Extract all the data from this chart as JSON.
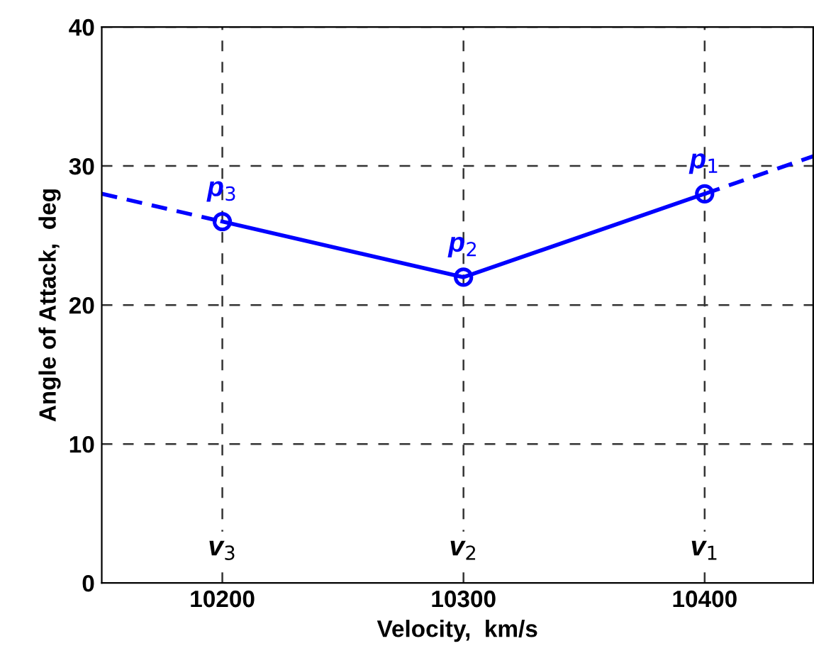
{
  "chart_data": {
    "type": "line",
    "xlabel": "Velocity,  km/s",
    "ylabel": "Angle of Attack,  deg",
    "xlim": [
      10150,
      10445
    ],
    "xticks": [
      10200,
      10300,
      10400
    ],
    "ylim": [
      0,
      40
    ],
    "yticks": [
      0,
      10,
      20,
      30,
      40
    ],
    "grid": true,
    "series": [
      {
        "x": [
          10200,
          10300,
          10400
        ],
        "values": [
          26,
          22,
          28
        ],
        "color": "#0000ff",
        "line_style": "solid",
        "marker": "circle"
      },
      {
        "x": [
          10150,
          10200
        ],
        "values": [
          28,
          26
        ],
        "color": "#0000ff",
        "line_style": "dashed",
        "marker": "none"
      },
      {
        "x": [
          10400,
          10445
        ],
        "values": [
          28,
          30.7
        ],
        "color": "#0000ff",
        "line_style": "dashed",
        "marker": "none"
      }
    ],
    "annotations": [
      {
        "text": "p$_{3}$",
        "x": 10200,
        "y": 26
      },
      {
        "text": "p$_{2}$",
        "x": 10300,
        "y": 22
      },
      {
        "text": "p$_{1}$",
        "x": 10400,
        "y": 28
      },
      {
        "text": "v$_{3}$",
        "x": 10200,
        "y": 2.5
      },
      {
        "text": "v$_{2}$",
        "x": 10300,
        "y": 2.5
      },
      {
        "text": "v$_{1}$",
        "x": 10400,
        "y": 2.5
      }
    ]
  }
}
